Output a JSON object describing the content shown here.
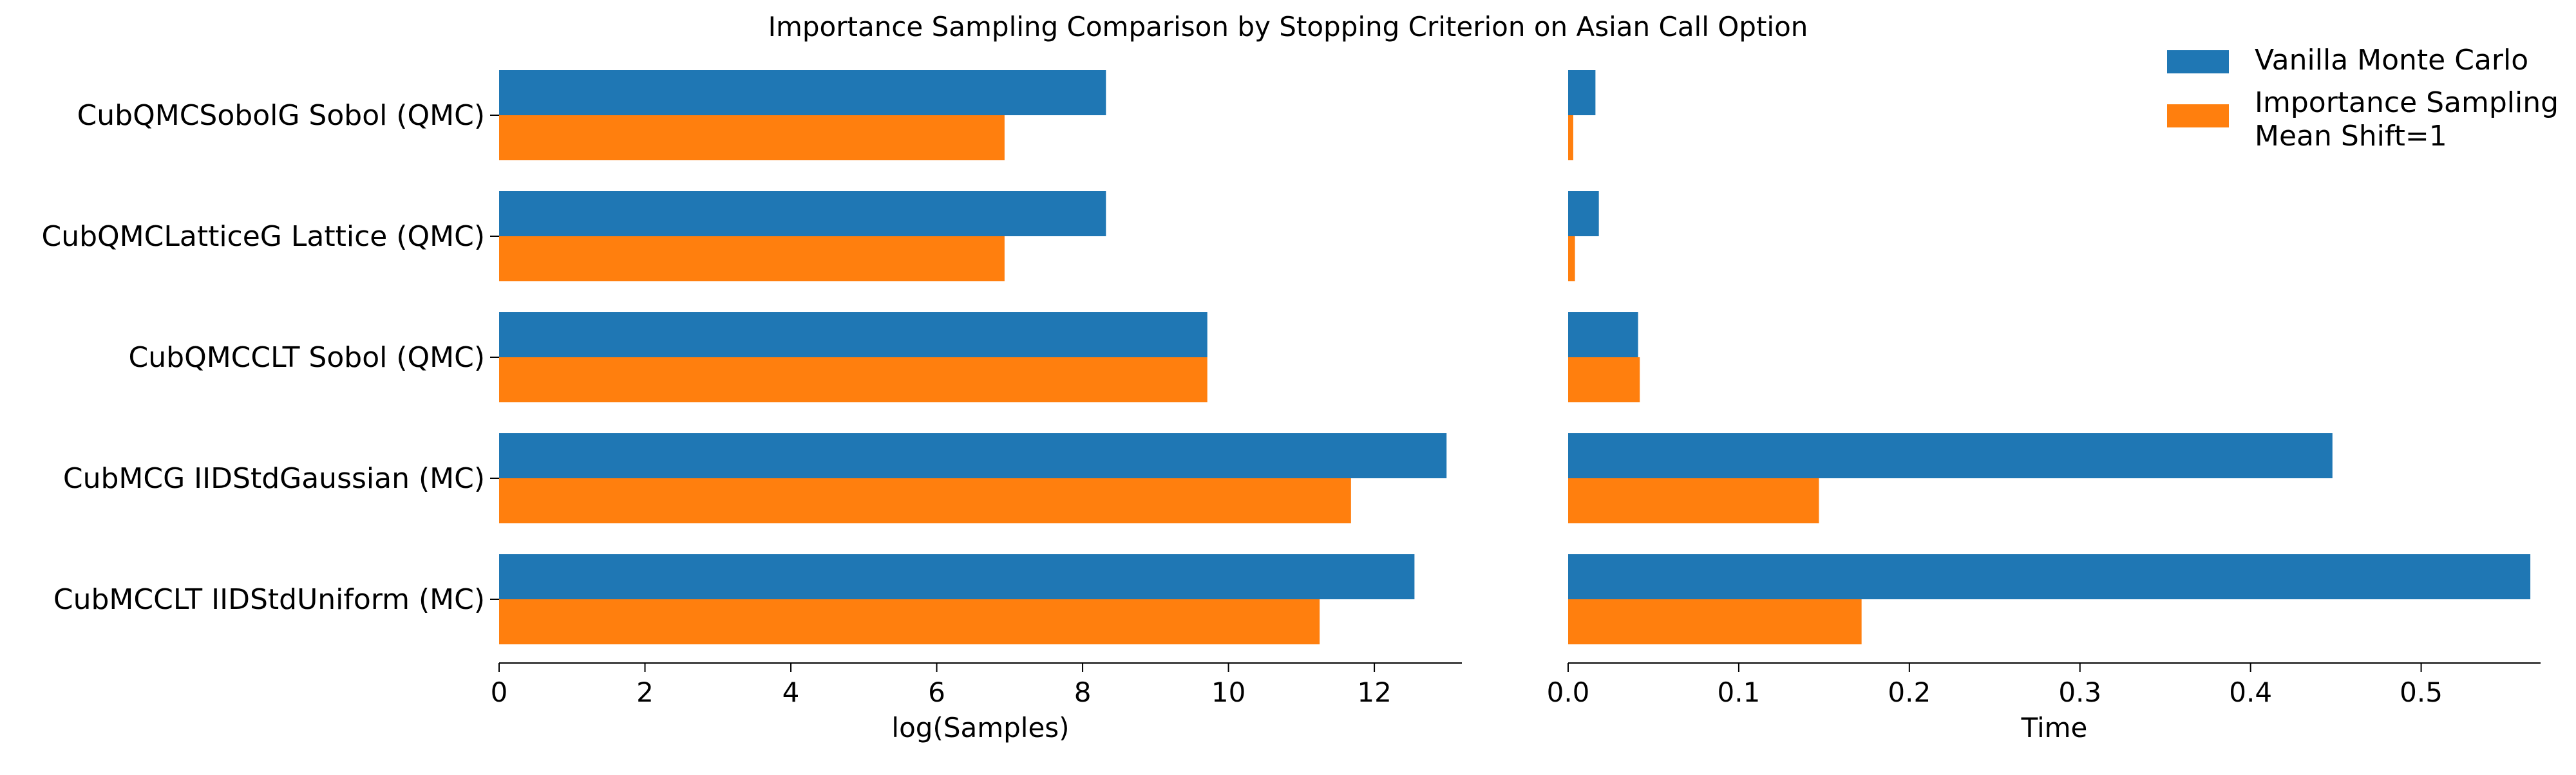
{
  "chart_data": {
    "type": "bar",
    "orientation": "horizontal",
    "title": "Importance Sampling Comparison by Stopping Criterion on Asian Call Option",
    "categories": [
      "CubQMCSobolG Sobol (QMC)",
      "CubQMCLatticeG Lattice (QMC)",
      "CubQMCCLT Sobol (QMC)",
      "CubMCG IIDStdGaussian (MC)",
      "CubMCCLT IIDStdUniform (MC)"
    ],
    "legend": {
      "placement": "top-right",
      "entries": [
        {
          "label": "Vanilla Monte Carlo",
          "color": "#1f77b4"
        },
        {
          "label": "Importance Sampling\nMean Shift=1",
          "color": "#ff7f0e"
        }
      ]
    },
    "panels": [
      {
        "xlabel": "log(Samples)",
        "xlim": [
          0,
          13.2
        ],
        "ticks": [
          0,
          2,
          4,
          6,
          8,
          10,
          12
        ],
        "tick_labels": [
          "0",
          "2",
          "4",
          "6",
          "8",
          "10",
          "12"
        ],
        "series": [
          {
            "name": "Vanilla Monte Carlo",
            "color": "#1f77b4",
            "values": [
              8.32,
              8.32,
              9.71,
              12.99,
              12.55
            ]
          },
          {
            "name": "Importance Sampling Mean Shift=1",
            "color": "#ff7f0e",
            "values": [
              6.93,
              6.93,
              9.71,
              11.68,
              11.25
            ]
          }
        ]
      },
      {
        "xlabel": "Time",
        "xlim": [
          0,
          0.57
        ],
        "ticks": [
          0,
          0.1,
          0.2,
          0.3,
          0.4,
          0.5
        ],
        "tick_labels": [
          "0.0",
          "0.1",
          "0.2",
          "0.3",
          "0.4",
          "0.5"
        ],
        "series": [
          {
            "name": "Vanilla Monte Carlo",
            "color": "#1f77b4",
            "values": [
              0.016,
              0.018,
              0.041,
              0.448,
              0.564
            ]
          },
          {
            "name": "Importance Sampling Mean Shift=1",
            "color": "#ff7f0e",
            "values": [
              0.003,
              0.004,
              0.042,
              0.147,
              0.172
            ]
          }
        ]
      }
    ]
  }
}
